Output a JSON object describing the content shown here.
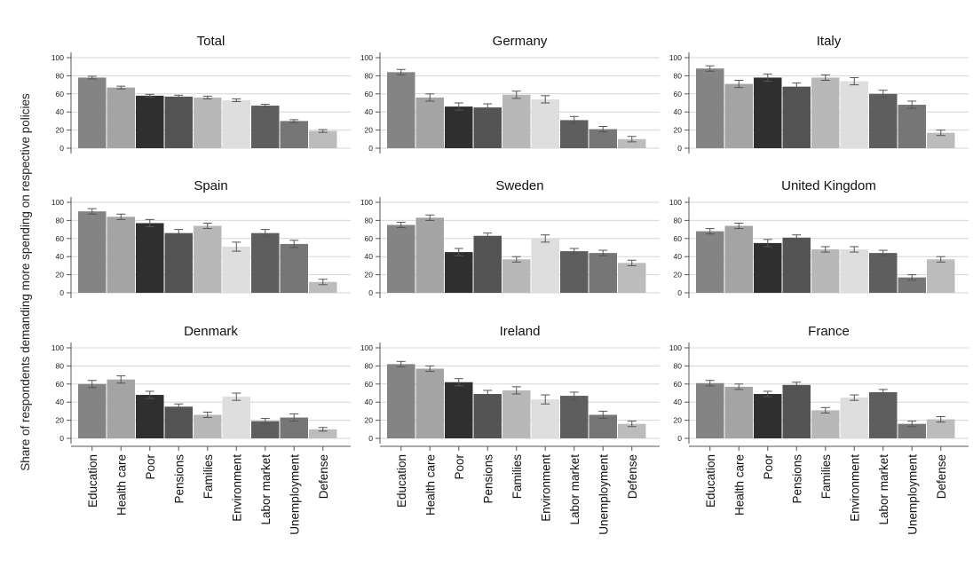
{
  "chart_data": {
    "type": "bar",
    "ylabel": "Share of respondents demanding more spending on respective policies",
    "ylim": [
      0,
      100
    ],
    "yticks": [
      0,
      20,
      40,
      60,
      80,
      100
    ],
    "grid": true,
    "categories": [
      "Education",
      "Health care",
      "Poor",
      "Pensions",
      "Families",
      "Environment",
      "Labor market",
      "Unemployment",
      "Defense"
    ],
    "colors": [
      "#848484",
      "#a4a4a4",
      "#2f2f2f",
      "#545454",
      "#b8b8b8",
      "#dedede",
      "#5e5e5e",
      "#767676",
      "#bcbcbc"
    ],
    "panels": [
      {
        "title": "Total",
        "values": [
          78,
          67,
          58,
          57,
          56,
          53,
          47,
          30,
          19
        ],
        "errors": [
          1.5,
          1.5,
          1.5,
          1.5,
          1.5,
          1.5,
          1.5,
          1.5,
          1.5
        ]
      },
      {
        "title": "Germany",
        "values": [
          84,
          56,
          46,
          45,
          59,
          54,
          31,
          21,
          10
        ],
        "errors": [
          3,
          4,
          4,
          4,
          4,
          4,
          4,
          3,
          3
        ]
      },
      {
        "title": "Italy",
        "values": [
          88,
          71,
          78,
          68,
          78,
          74,
          60,
          48,
          17
        ],
        "errors": [
          3,
          4,
          4,
          4,
          3,
          4,
          4,
          4,
          3
        ]
      },
      {
        "title": "Spain",
        "values": [
          90,
          84,
          77,
          66,
          74,
          51,
          66,
          54,
          12
        ],
        "errors": [
          3,
          3,
          4,
          4,
          3,
          5,
          4,
          4,
          3
        ]
      },
      {
        "title": "Sweden",
        "values": [
          75,
          83,
          45,
          63,
          37,
          60,
          46,
          44,
          33
        ],
        "errors": [
          3,
          3,
          4,
          3,
          3,
          4,
          3,
          3,
          3
        ]
      },
      {
        "title": "United Kingdom",
        "values": [
          68,
          74,
          55,
          61,
          48,
          48,
          44,
          17,
          37
        ],
        "errors": [
          3,
          3,
          4,
          3,
          3,
          3,
          3,
          3,
          3
        ]
      },
      {
        "title": "Denmark",
        "values": [
          60,
          65,
          48,
          35,
          26,
          46,
          19,
          23,
          10
        ],
        "errors": [
          4,
          4,
          4,
          3,
          3,
          4,
          3,
          4,
          2
        ]
      },
      {
        "title": "Ireland",
        "values": [
          82,
          77,
          62,
          49,
          53,
          43,
          47,
          26,
          16
        ],
        "errors": [
          3,
          3,
          4,
          4,
          4,
          5,
          4,
          4,
          3
        ]
      },
      {
        "title": "France",
        "values": [
          61,
          57,
          49,
          59,
          31,
          45,
          51,
          16,
          21
        ],
        "errors": [
          3,
          3,
          3,
          3,
          3,
          3,
          3,
          3,
          3
        ]
      }
    ]
  }
}
